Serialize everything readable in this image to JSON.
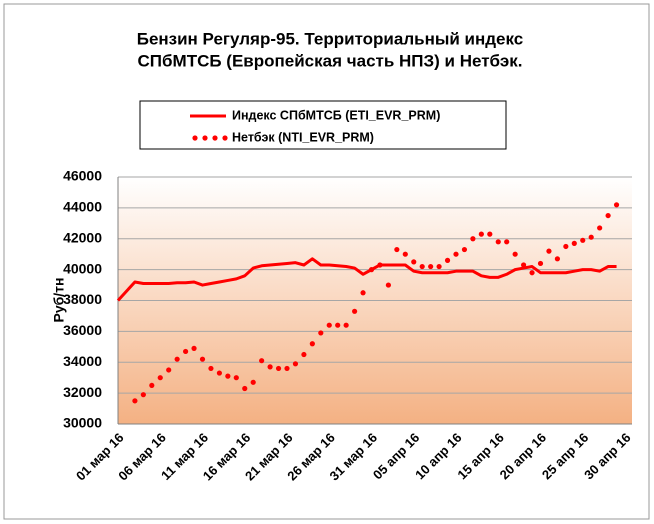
{
  "chart_data": {
    "type": "line",
    "title": [
      "Бензин Регуляр-95. Территориальный индекс",
      "СПбМТСБ (Европейская часть НПЗ) и Нетбэк."
    ],
    "y_label": "Руб/тн",
    "categories": [
      "01 мар 16",
      null,
      null,
      null,
      null,
      "06 мар 16",
      null,
      null,
      null,
      null,
      "11 мар 16",
      null,
      null,
      null,
      null,
      "16 мар 16",
      null,
      null,
      null,
      null,
      "21 мар 16",
      null,
      null,
      null,
      null,
      "26 мар 16",
      null,
      null,
      null,
      null,
      "31 мар 16",
      null,
      null,
      null,
      null,
      "05 апр 16",
      null,
      null,
      null,
      null,
      "10 апр 16",
      null,
      null,
      null,
      null,
      "15 апр 16",
      null,
      null,
      null,
      null,
      "20 апр 16",
      null,
      null,
      null,
      null,
      "25 апр 16",
      null,
      null,
      null,
      null,
      "30 апр 16"
    ],
    "series": [
      {
        "name": "Индекс СПбМТСБ  (ETI_EVR_PRM)",
        "color": "#ff0000",
        "style": "solid",
        "values": [
          38000,
          38600,
          39200,
          39100,
          39100,
          39100,
          39100,
          39150,
          39150,
          39200,
          39000,
          39100,
          39200,
          39300,
          39400,
          39600,
          40100,
          40250,
          40300,
          40350,
          40400,
          40450,
          40300,
          40700,
          40300,
          40300,
          40250,
          40200,
          40100,
          39700,
          40000,
          40300,
          40300,
          40300,
          40300,
          39900,
          39800,
          39800,
          39800,
          39800,
          39900,
          39900,
          39900,
          39600,
          39500,
          39500,
          39700,
          40000,
          40100,
          40200,
          39800,
          39800,
          39800,
          39800,
          39900,
          40000,
          40000,
          39900,
          40200,
          40200,
          null
        ]
      },
      {
        "name": "Нетбэк (NTI_EVR_PRM)",
        "color": "#ff0000",
        "style": "dotted",
        "values": [
          null,
          null,
          31500,
          31900,
          32500,
          33000,
          33500,
          34200,
          34700,
          34900,
          34200,
          33600,
          33300,
          33100,
          33000,
          32300,
          32700,
          34100,
          33700,
          33600,
          33600,
          33900,
          34500,
          35200,
          35900,
          36400,
          36400,
          36400,
          37300,
          38500,
          40000,
          40300,
          39000,
          41300,
          41000,
          40500,
          40200,
          40200,
          40200,
          40600,
          41000,
          41300,
          42000,
          42300,
          42300,
          41800,
          41800,
          41000,
          40300,
          39800,
          40400,
          41200,
          40700,
          41500,
          41700,
          41900,
          42100,
          42700,
          43500,
          44200,
          null
        ]
      }
    ],
    "ylim": [
      30000,
      46000
    ],
    "yticks": [
      30000,
      32000,
      34000,
      36000,
      38000,
      40000,
      42000,
      44000,
      46000
    ],
    "grid": true
  }
}
